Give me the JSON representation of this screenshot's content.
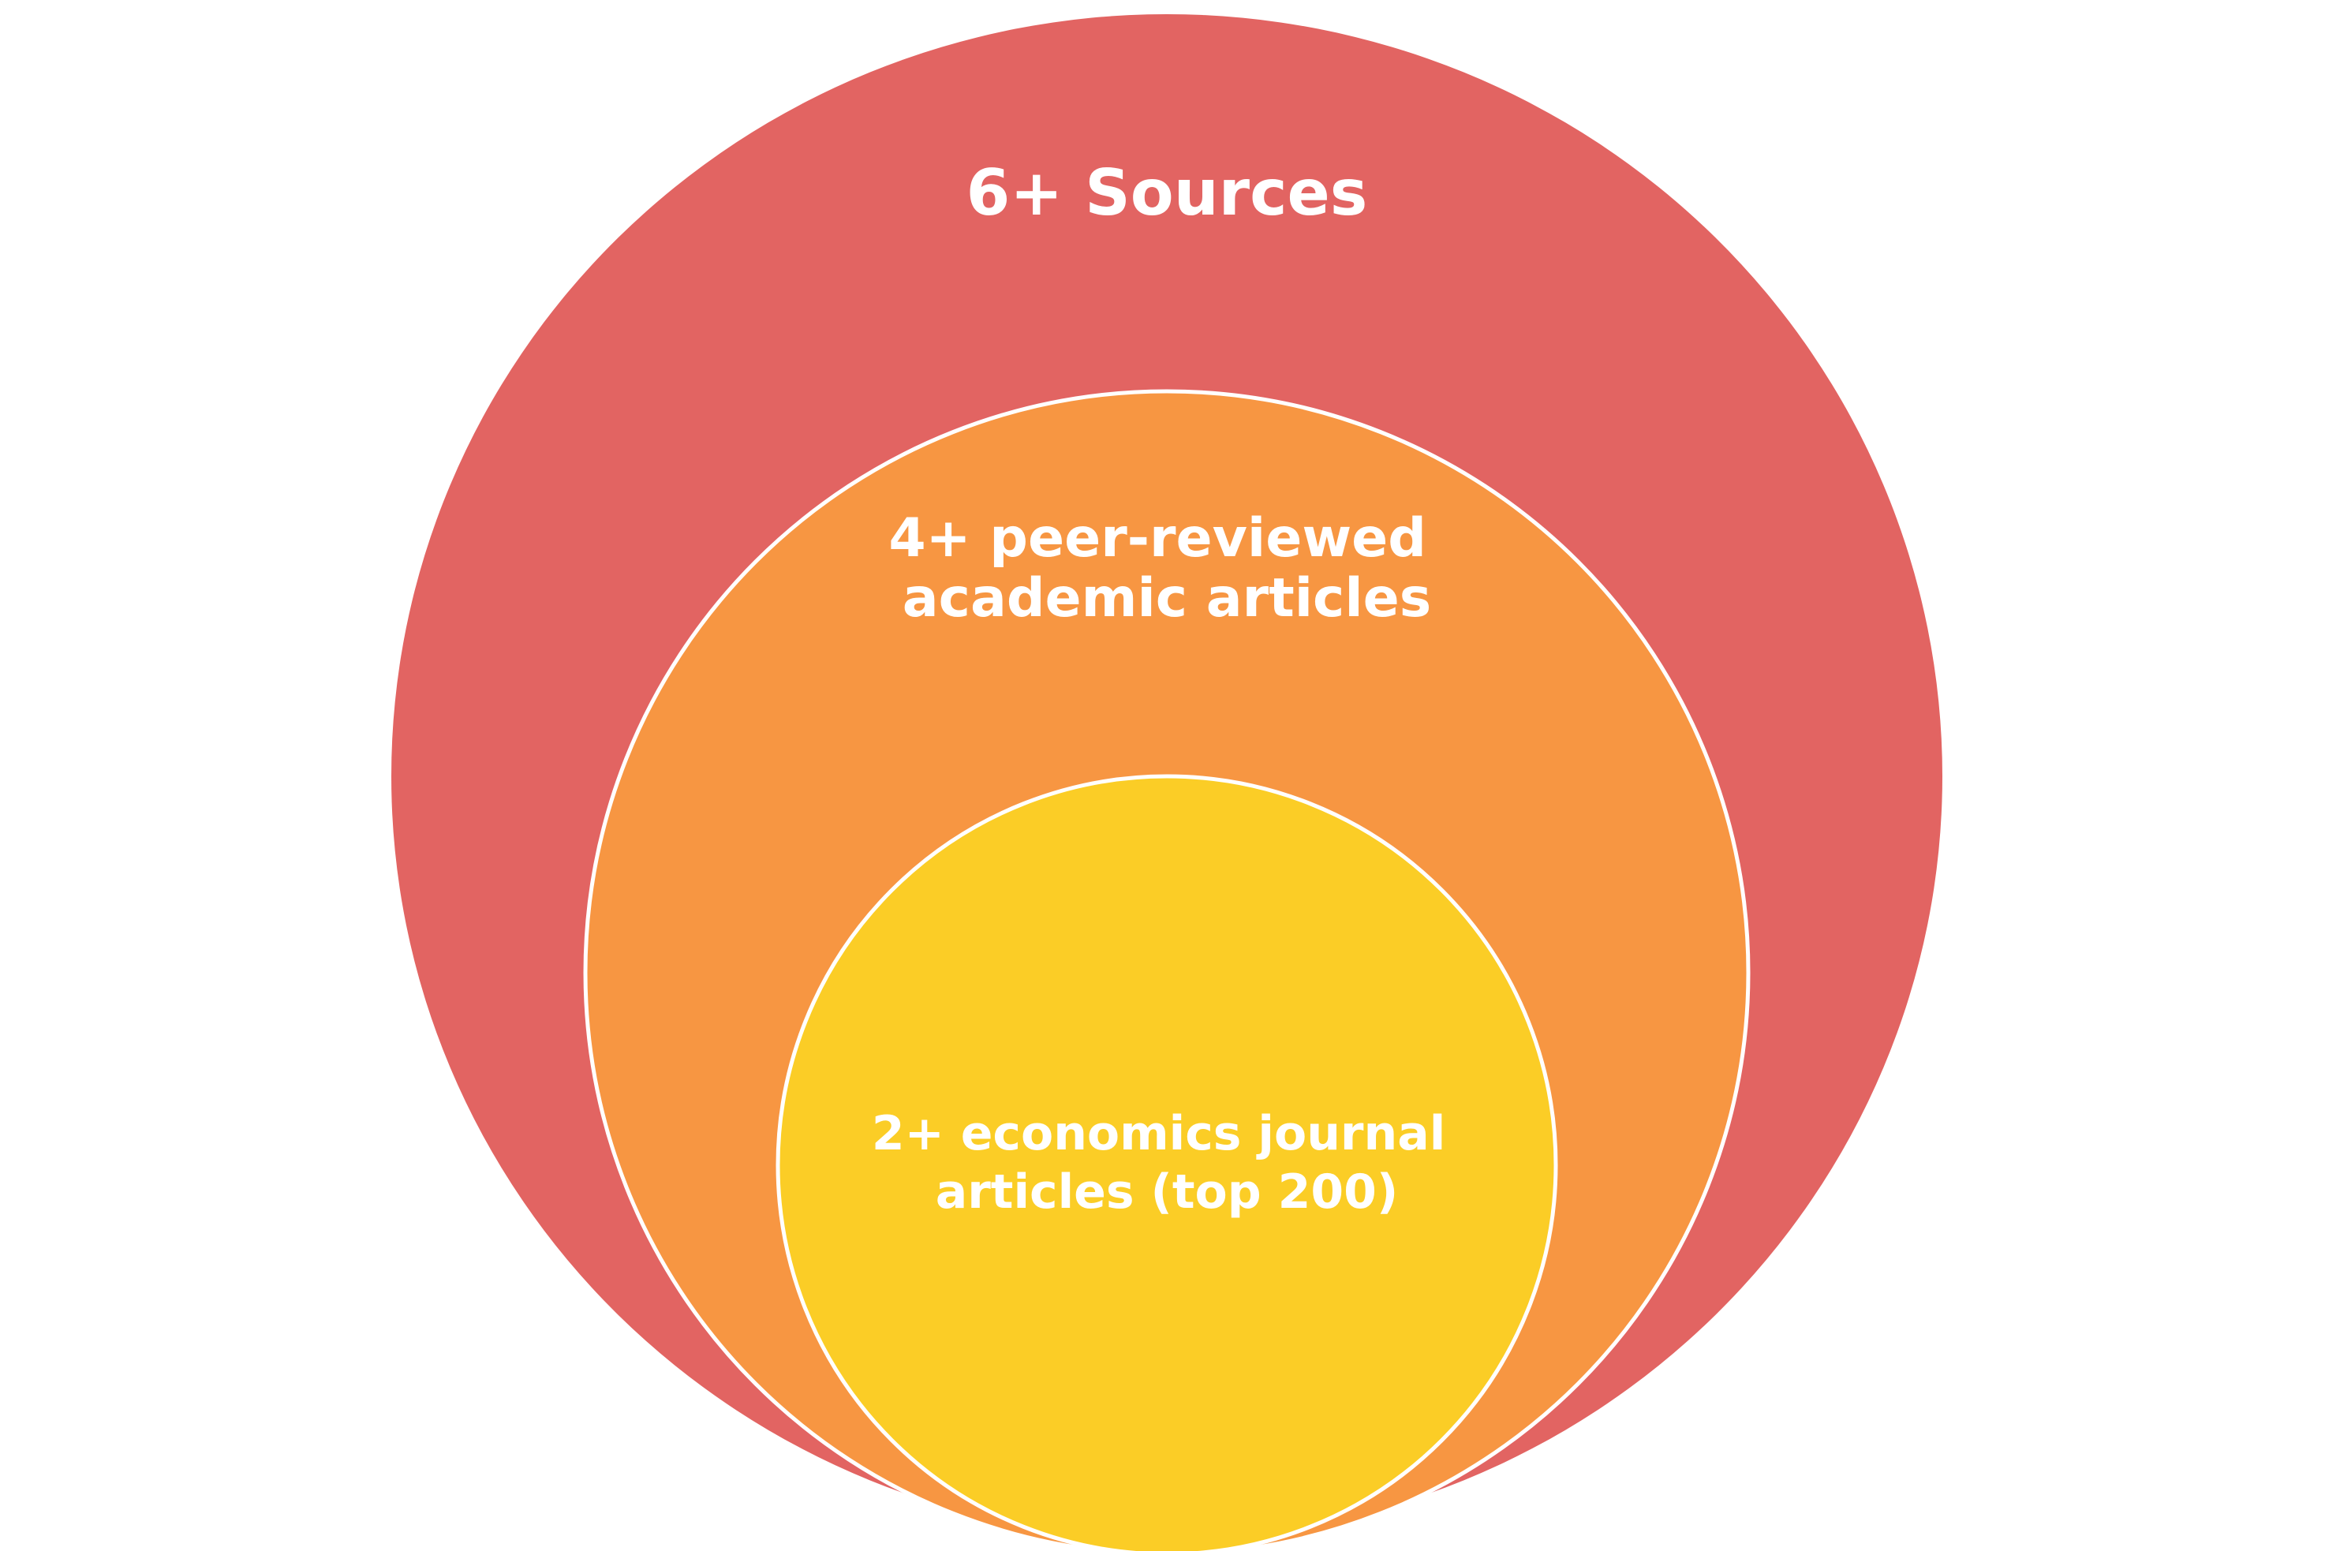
{
  "diagram": {
    "levels": [
      {
        "id": "outer",
        "lines": [
          "6+ Sources"
        ],
        "color": "#E26462"
      },
      {
        "id": "middle",
        "lines": [
          "4+ peer-reviewed",
          "academic articles"
        ],
        "color": "#F79642"
      },
      {
        "id": "inner",
        "lines": [
          "2+ economics journal",
          "articles (top 200)"
        ],
        "color": "#FBCD26"
      }
    ],
    "stroke_color": "#FFFFFF"
  }
}
